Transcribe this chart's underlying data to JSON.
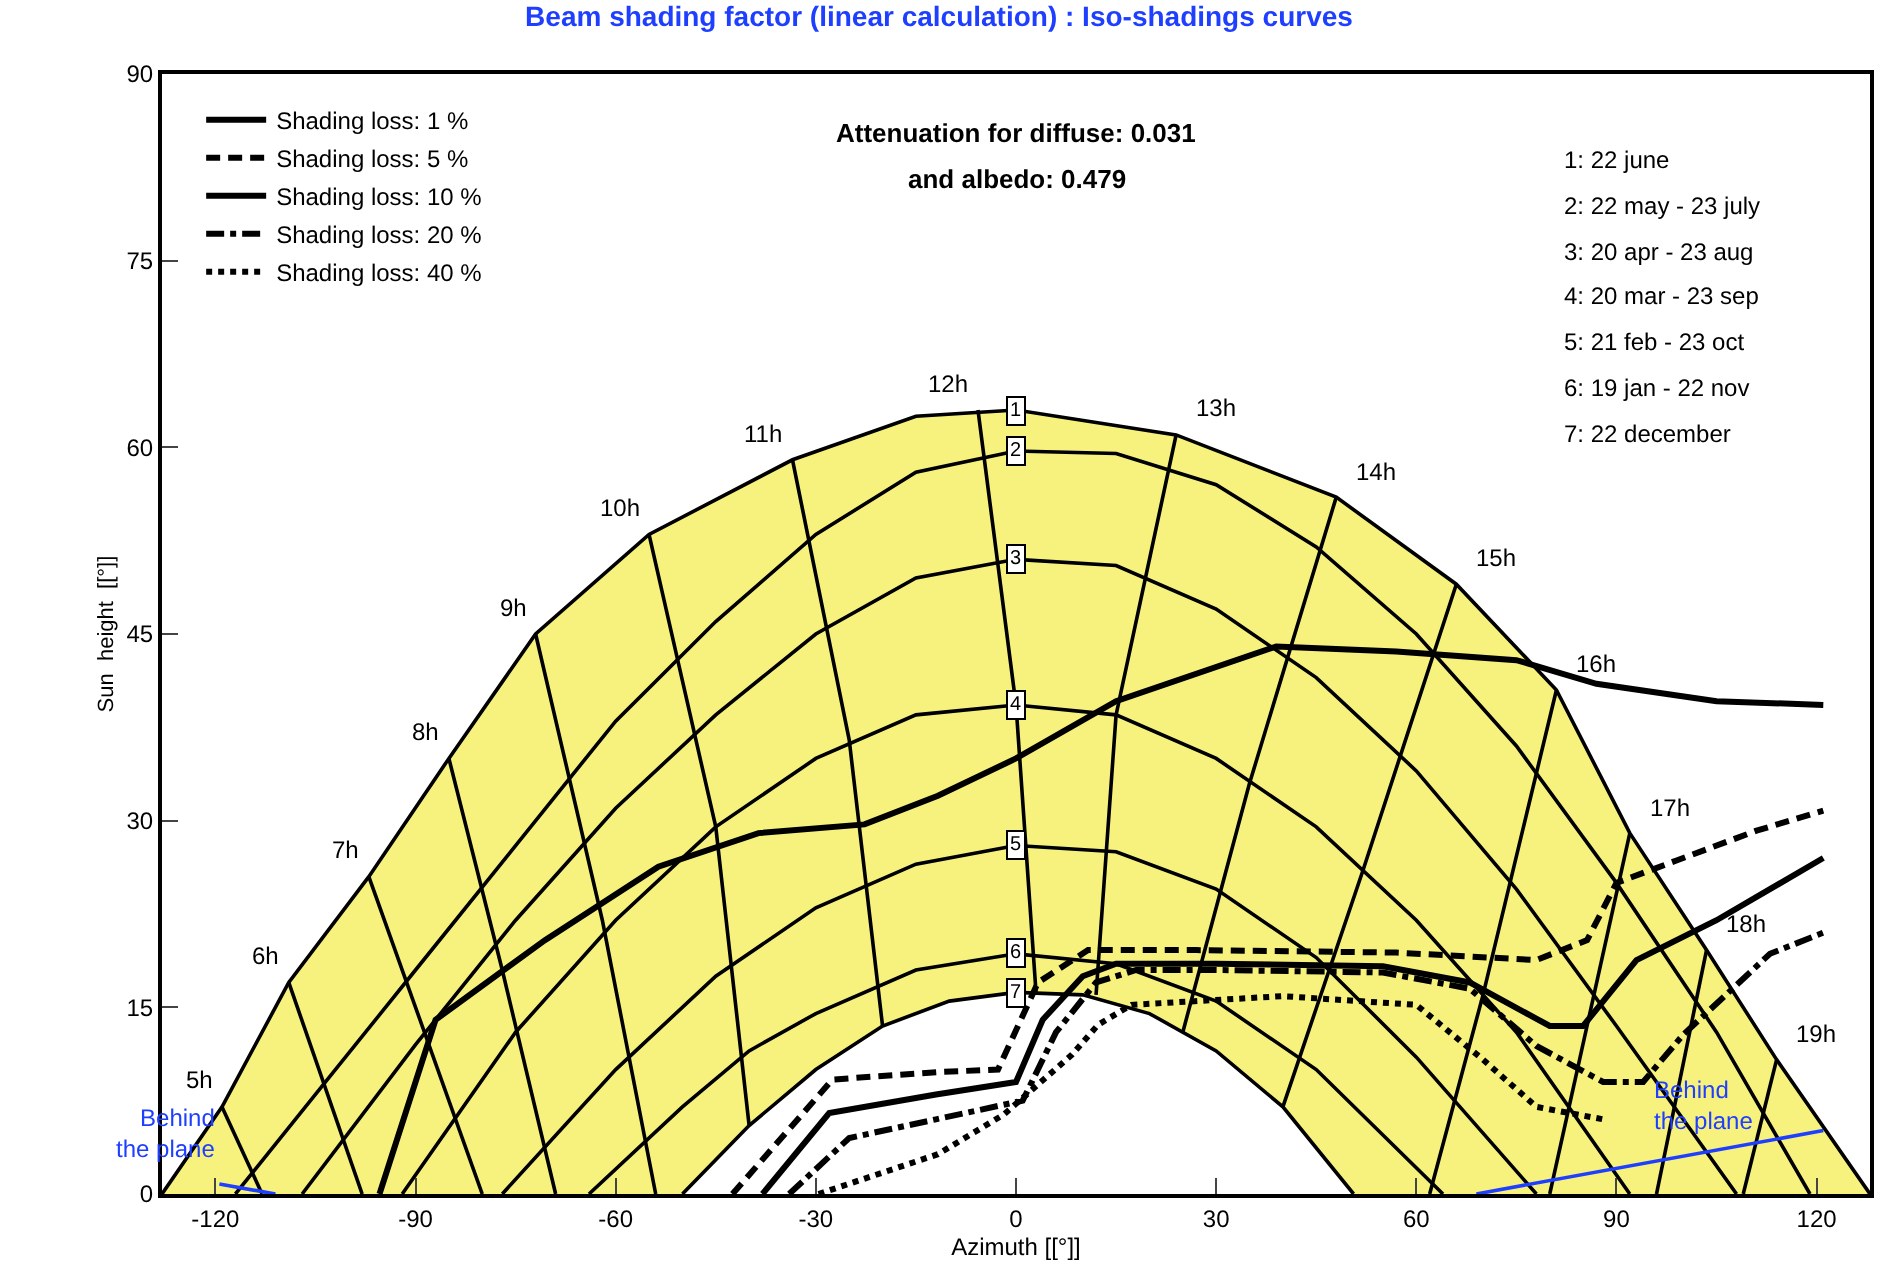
{
  "chart_data": {
    "type": "line",
    "title": "Beam shading factor (linear calculation) : Iso-shadings curves",
    "xlabel": "Azimuth [[°]]",
    "ylabel": "Sun  height  [[°]]",
    "xlim": [
      -128,
      128
    ],
    "xticks": [
      -120,
      -90,
      -60,
      -30,
      0,
      30,
      60,
      90,
      120
    ],
    "ylim": [
      0,
      90
    ],
    "yticks": [
      0,
      15,
      30,
      45,
      60,
      75,
      90
    ],
    "legend": "top left",
    "marker": "none",
    "series": [
      {
        "type": "area",
        "color": "#f7f17e",
        "x": [
          -128,
          -119,
          -109,
          -97,
          -85,
          -72,
          -55,
          -33.5,
          -15,
          0,
          24,
          48,
          66,
          81,
          92,
          103.5,
          114,
          128
        ],
        "values": [
          0,
          7,
          17,
          25.5,
          35,
          45,
          53,
          59,
          62.5,
          63,
          61,
          56,
          49,
          40.5,
          29,
          19.6,
          10.8,
          0
        ]
      },
      {
        "color": "#000000",
        "x": [
          -117,
          -105,
          -90,
          -75,
          -60,
          -45,
          -30,
          -15,
          0,
          15,
          30,
          45,
          60,
          75,
          90,
          105,
          119
        ],
        "values": [
          0,
          8,
          18,
          28,
          38,
          46,
          53,
          58,
          59.7,
          59.5,
          57,
          52,
          45,
          36,
          25,
          13,
          0
        ]
      },
      {
        "color": "#000000",
        "x": [
          -107,
          -90,
          -75,
          -60,
          -45,
          -30,
          -15,
          0,
          15,
          30,
          45,
          60,
          75,
          90,
          108
        ],
        "values": [
          0,
          12,
          22,
          31,
          38.5,
          45,
          49.5,
          51,
          50.5,
          47,
          41.5,
          34,
          24.5,
          13.5,
          0
        ]
      },
      {
        "color": "#000000",
        "x": [
          -92,
          -75,
          -60,
          -45,
          -30,
          -15,
          0,
          15,
          30,
          45,
          60,
          75,
          92
        ],
        "values": [
          0,
          13,
          22,
          29.5,
          35,
          38.5,
          39.3,
          38.5,
          35,
          29.5,
          22,
          13,
          0
        ]
      },
      {
        "color": "#000000",
        "x": [
          -77,
          -60,
          -45,
          -30,
          -15,
          0,
          15,
          30,
          45,
          60,
          78
        ],
        "values": [
          0,
          10,
          17.5,
          23,
          26.5,
          28,
          27.5,
          24.5,
          19,
          11,
          0
        ]
      },
      {
        "color": "#000000",
        "x": [
          -64,
          -50,
          -40,
          -30,
          -15,
          0,
          15,
          30,
          45,
          64
        ],
        "values": [
          0,
          7,
          11.5,
          14.5,
          18,
          19.3,
          18.5,
          15.5,
          10,
          0
        ]
      },
      {
        "type": "area",
        "color": "#ffffff",
        "x": [
          -50,
          -40,
          -30,
          -20,
          -10,
          0,
          10,
          20,
          30,
          40,
          50.6
        ],
        "values": [
          0,
          5.5,
          10,
          13.5,
          15.5,
          16.2,
          16,
          14.5,
          11.5,
          7,
          0
        ]
      },
      {
        "color": "#000000",
        "x": [
          -119,
          -113
        ],
        "values": [
          7,
          0
        ]
      },
      {
        "color": "#000000",
        "x": [
          -109,
          -98
        ],
        "values": [
          17,
          0
        ]
      },
      {
        "color": "#000000",
        "x": [
          -97,
          -80
        ],
        "values": [
          25.5,
          0
        ]
      },
      {
        "color": "#000000",
        "x": [
          -85,
          -77,
          -69
        ],
        "values": [
          35,
          18,
          0
        ]
      },
      {
        "color": "#000000",
        "x": [
          -72,
          -62,
          -54
        ],
        "values": [
          45,
          22,
          0
        ]
      },
      {
        "color": "#000000",
        "x": [
          -55,
          -45,
          -40
        ],
        "values": [
          53,
          29.5,
          5.5
        ]
      },
      {
        "color": "#000000",
        "x": [
          -33.5,
          -25,
          -20
        ],
        "values": [
          59,
          36.5,
          13.5
        ]
      },
      {
        "color": "#000000",
        "x": [
          -5.7,
          0,
          3
        ],
        "values": [
          63,
          39.3,
          16.2
        ]
      },
      {
        "color": "#000000",
        "x": [
          24,
          15,
          12
        ],
        "values": [
          61,
          38.5,
          16
        ]
      },
      {
        "color": "#000000",
        "x": [
          48,
          35,
          25
        ],
        "values": [
          56,
          33,
          13
        ]
      },
      {
        "color": "#000000",
        "x": [
          66,
          52,
          40
        ],
        "values": [
          49,
          26,
          7
        ]
      },
      {
        "color": "#000000",
        "x": [
          81,
          70,
          62
        ],
        "values": [
          40.5,
          16,
          0
        ]
      },
      {
        "color": "#000000",
        "x": [
          92,
          80
        ],
        "values": [
          29,
          0
        ]
      },
      {
        "color": "#000000",
        "x": [
          103.5,
          96
        ],
        "values": [
          19.6,
          0
        ]
      },
      {
        "color": "#000000",
        "x": [
          114,
          109
        ],
        "values": [
          10.8,
          0
        ]
      },
      {
        "name": "Shading loss: 1 %",
        "color": "#000000",
        "line_style": "solid",
        "x": [
          -95.4,
          -87,
          -70.6,
          -53.6,
          -38.6,
          -22.7,
          -11.7,
          0,
          15,
          39,
          57,
          75,
          87,
          105,
          121
        ],
        "values": [
          0,
          14,
          20.4,
          26.3,
          29,
          29.7,
          32,
          35,
          39.6,
          44,
          43.6,
          42.9,
          41,
          39.6,
          39.3
        ]
      },
      {
        "name": "Shading loss: 5 %",
        "color": "#000000",
        "line_style": "dashed",
        "x": [
          -42.5,
          -27.5,
          -11.7,
          -2.7,
          3.3,
          10.8,
          27,
          57,
          78,
          85.6,
          90,
          99,
          111,
          121
        ],
        "values": [
          0,
          9.2,
          9.8,
          10,
          17,
          19.6,
          19.6,
          19.4,
          18.8,
          20.4,
          25,
          26.8,
          29.2,
          30.8
        ]
      },
      {
        "name": "Shading loss: 10 %",
        "color": "#000000",
        "line_style": "solid",
        "x": [
          -38,
          -28,
          -12,
          0,
          4,
          10,
          15,
          30,
          55,
          68,
          80,
          85,
          93,
          105,
          113,
          121
        ],
        "values": [
          0,
          6.5,
          8,
          9,
          14,
          17.5,
          18.5,
          18.5,
          18.3,
          17,
          13.5,
          13.5,
          18.8,
          22,
          24.5,
          27
        ]
      },
      {
        "name": "Shading loss: 20 %",
        "color": "#000000",
        "line_style": "dashdot",
        "x": [
          -34,
          -25,
          -12,
          1,
          6,
          12,
          18,
          30,
          55,
          68,
          78,
          88,
          94,
          100,
          113,
          121
        ],
        "values": [
          0,
          4.5,
          6,
          7.5,
          13,
          17,
          18,
          18,
          17.8,
          16.5,
          11.9,
          9,
          9,
          12.8,
          19.3,
          21
        ]
      },
      {
        "name": "Shading loss: 40 %",
        "color": "#000000",
        "line_style": "dotted",
        "x": [
          -29.6,
          -11.7,
          -1.8,
          8.4,
          12.3,
          17.3,
          40,
          60,
          70,
          78,
          88
        ],
        "values": [
          0,
          3.2,
          6.4,
          11.2,
          13.6,
          15.2,
          15.9,
          15.2,
          10.8,
          7,
          6
        ]
      },
      {
        "color": "#1f3fff",
        "x": [
          -119.4,
          -111
        ],
        "values": [
          0.8,
          0
        ]
      },
      {
        "color": "#1f3fff",
        "x": [
          69,
          121
        ],
        "values": [
          0,
          5.1
        ]
      }
    ],
    "annotations": [
      "Attenuation for diffuse: 0.031",
      "and albedo: 0.479",
      "1: 22 june",
      "2: 22 may - 23 july",
      "3: 20 apr - 23 aug",
      "4: 20 mar - 23 sep",
      "5: 21 feb - 23 oct",
      "6: 19 jan - 22 nov",
      "7: 22 december",
      {
        "text": "1",
        "x": 0,
        "y": 63
      },
      {
        "text": "2",
        "x": 0,
        "y": 59.7
      },
      {
        "text": "3",
        "x": 0,
        "y": 51
      },
      {
        "text": "4",
        "x": 0,
        "y": 39.3
      },
      {
        "text": "5",
        "x": 0,
        "y": 28
      },
      {
        "text": "6",
        "x": 0,
        "y": 19.3
      },
      {
        "text": "7",
        "x": 0,
        "y": 16.2
      },
      {
        "text": "5h",
        "x": -119,
        "y": 7
      },
      {
        "text": "6h",
        "x": -109,
        "y": 17
      },
      {
        "text": "7h",
        "x": -97,
        "y": 25.5
      },
      {
        "text": "8h",
        "x": -85,
        "y": 35
      },
      {
        "text": "9h",
        "x": -72,
        "y": 45
      },
      {
        "text": "10h",
        "x": -55,
        "y": 53
      },
      {
        "text": "11h",
        "x": -33.5,
        "y": 59
      },
      {
        "text": "12h",
        "x": -5.7,
        "y": 63
      },
      {
        "text": "13h",
        "x": 24,
        "y": 61
      },
      {
        "text": "14h",
        "x": 48,
        "y": 56
      },
      {
        "text": "15h",
        "x": 66,
        "y": 49
      },
      {
        "text": "16h",
        "x": 81,
        "y": 40.5
      },
      {
        "text": "17h",
        "x": 92,
        "y": 29
      },
      {
        "text": "18h",
        "x": 103.5,
        "y": 19.6
      },
      {
        "text": "19h",
        "x": 114,
        "y": 10.8
      },
      {
        "text": "Behind\nthe plane",
        "x": -119.4,
        "y": 0.8
      },
      {
        "text": "Behind\nthe plane",
        "x": 95,
        "y": 3
      }
    ]
  }
}
